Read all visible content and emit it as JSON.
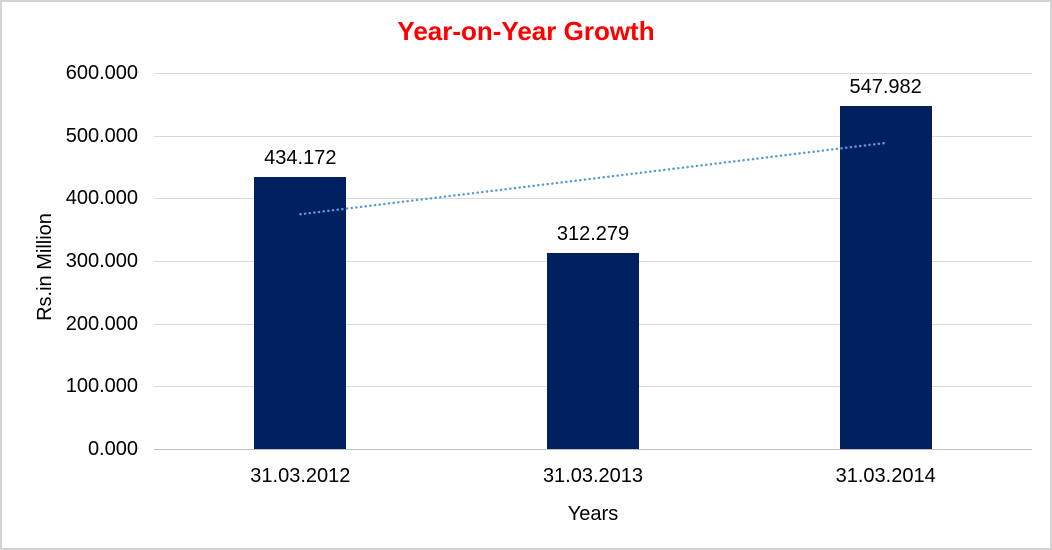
{
  "window": {
    "background": "#FFFFFF",
    "border_color": "#D3D3D3"
  },
  "chart_data": {
    "type": "bar",
    "title": "Year-on-Year Growth",
    "title_color": "#FF0000",
    "xlabel": "Years",
    "ylabel": "Rs.in Million",
    "categories": [
      "31.03.2012",
      "31.03.2013",
      "31.03.2014"
    ],
    "values": [
      434.172,
      312.279,
      547.982
    ],
    "value_labels": [
      "434.172",
      "312.279",
      "547.982"
    ],
    "bar_color": "#002060",
    "ylim": [
      0,
      600
    ],
    "yticks": [
      {
        "value": 600,
        "label": "600.000"
      },
      {
        "value": 500,
        "label": "500.000"
      },
      {
        "value": 400,
        "label": "400.000"
      },
      {
        "value": 300,
        "label": "300.000"
      },
      {
        "value": 200,
        "label": "200.000"
      },
      {
        "value": 100,
        "label": "100.000"
      },
      {
        "value": 0,
        "label": "0.000"
      }
    ],
    "grid": "horizontal",
    "gridline_color": "#D9D9D9",
    "axis_line_color": "#BFBFBF",
    "legend": "none",
    "trendline": {
      "type": "linear",
      "style": "dotted",
      "color": "#5B9BD5",
      "start_value": 374.6,
      "end_value": 488.4
    }
  }
}
